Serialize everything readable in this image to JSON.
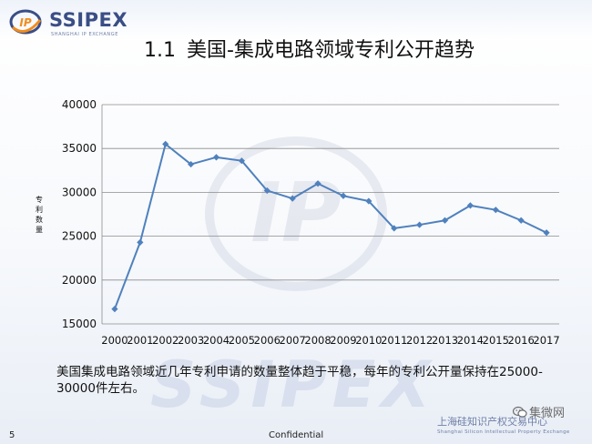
{
  "slide": {
    "title_number": "1.1",
    "title_text": "美国-集成电路领域专利公开趋势",
    "logo_name": "SSIPEX",
    "logo_tagline": "SHANGHAI IP EXCHANGE",
    "logo_mark_text": "IP",
    "watermark_ip": "IP",
    "watermark_text": "SSIPEX",
    "caption": "美国集成电路领域近几年专利申请的数量整体趋于平稳，每年的专利公开量保持在25000-30000件左右。",
    "page_number": "5",
    "confidential": "Confidential",
    "org_cn": "上海硅知识产权交易中心",
    "org_en": "Shanghai Silicon Intellectual Property Exchange",
    "wechat_label": "集微网"
  },
  "colors": {
    "line": "#4f81bd",
    "marker": "#4f81bd",
    "grid": "#8c8c8c",
    "logo_blue": "#3a4e86",
    "logo_orange": "#f28c1e"
  },
  "icons": {
    "wechat": "wechat-icon",
    "logo": "ip-logo-icon"
  },
  "chart_data": {
    "type": "line",
    "ylabel": "专利数量",
    "xlabel": "",
    "title": "",
    "ylim": [
      15000,
      40000
    ],
    "yticks": [
      15000,
      20000,
      25000,
      30000,
      35000,
      40000
    ],
    "grid": true,
    "legend": "none",
    "categories": [
      "2000",
      "2001",
      "2002",
      "2003",
      "2004",
      "2005",
      "2006",
      "2007",
      "2008",
      "2009",
      "2010",
      "2011",
      "2012",
      "2013",
      "2014",
      "2015",
      "2016",
      "2017"
    ],
    "series": [
      {
        "values": [
          16700,
          24300,
          35500,
          33200,
          34000,
          33600,
          30200,
          29300,
          31000,
          29600,
          29000,
          25900,
          26300,
          26800,
          28500,
          28000,
          26800,
          25400
        ]
      }
    ]
  }
}
